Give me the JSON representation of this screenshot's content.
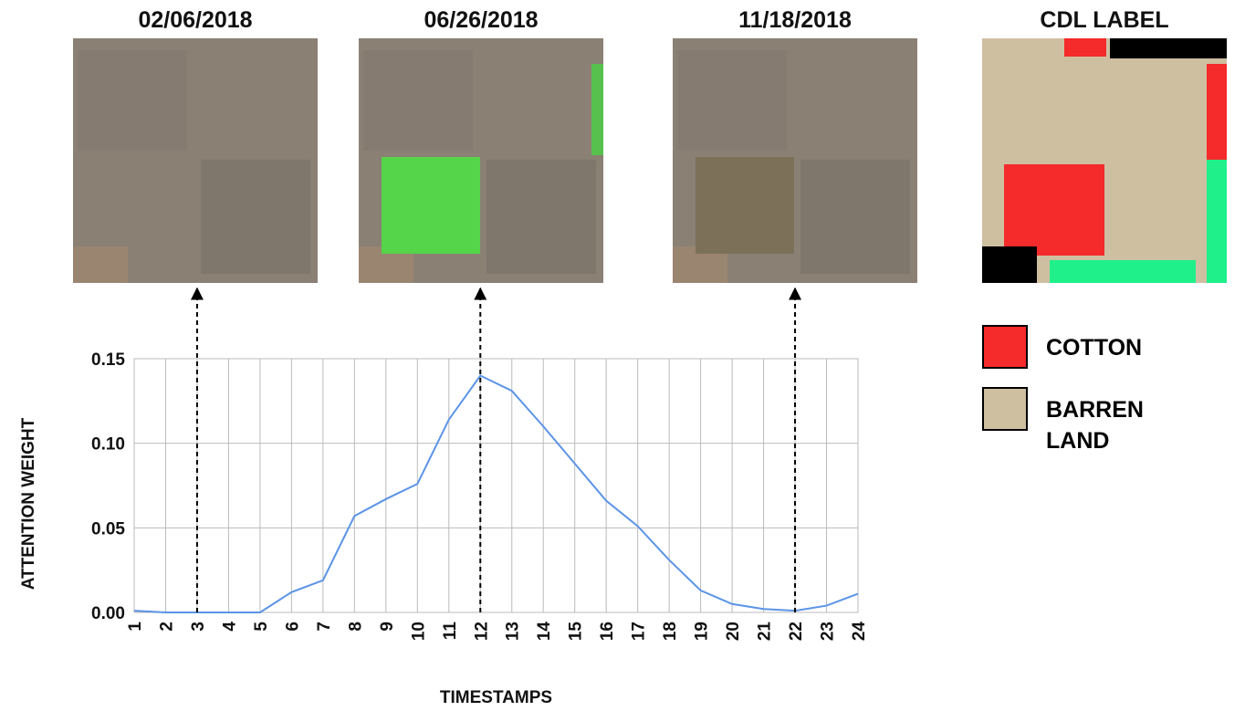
{
  "chart_data": {
    "type": "line",
    "x_label": "TIMESTAMPS",
    "y_label": "ATTENTION WEIGHT",
    "x": [
      1,
      2,
      3,
      4,
      5,
      6,
      7,
      8,
      9,
      10,
      11,
      12,
      13,
      14,
      15,
      16,
      17,
      18,
      19,
      20,
      21,
      22,
      23,
      24
    ],
    "series": [
      {
        "color": "#5b94e6",
        "values": [
          0.001,
          0,
          0,
          0,
          0,
          0.012,
          0.019,
          0.057,
          0.067,
          0.076,
          0.114,
          0.14,
          0.131,
          0.11,
          0.088,
          0.066,
          0.051,
          0.031,
          0.013,
          0.005,
          0.002,
          0.001,
          0.004,
          0.011
        ]
      }
    ],
    "xlim": [
      1,
      24
    ],
    "xticks": [
      1,
      2,
      3,
      4,
      5,
      6,
      7,
      8,
      9,
      10,
      11,
      12,
      13,
      14,
      15,
      16,
      17,
      18,
      19,
      20,
      21,
      22,
      23,
      24
    ],
    "ylim": [
      0,
      0.15
    ],
    "yticks": [
      {
        "value": 0,
        "label": "0.00"
      },
      {
        "value": 0.05,
        "label": "0.05"
      },
      {
        "value": 0.1,
        "label": "0.10"
      },
      {
        "value": 0.15,
        "label": "0.15"
      }
    ],
    "grid": true
  },
  "panels": [
    {
      "date": "02/06/2018",
      "timestamp": 3
    },
    {
      "date": "06/26/2018",
      "timestamp": 12
    },
    {
      "date": "11/18/2018",
      "timestamp": 22
    }
  ],
  "cdl": {
    "title": "CDL LABEL",
    "legend": [
      {
        "name": "COTTON",
        "color": "#f52a2a"
      },
      {
        "name": "BARREN LAND",
        "color": "#cfbfa1"
      }
    ]
  }
}
